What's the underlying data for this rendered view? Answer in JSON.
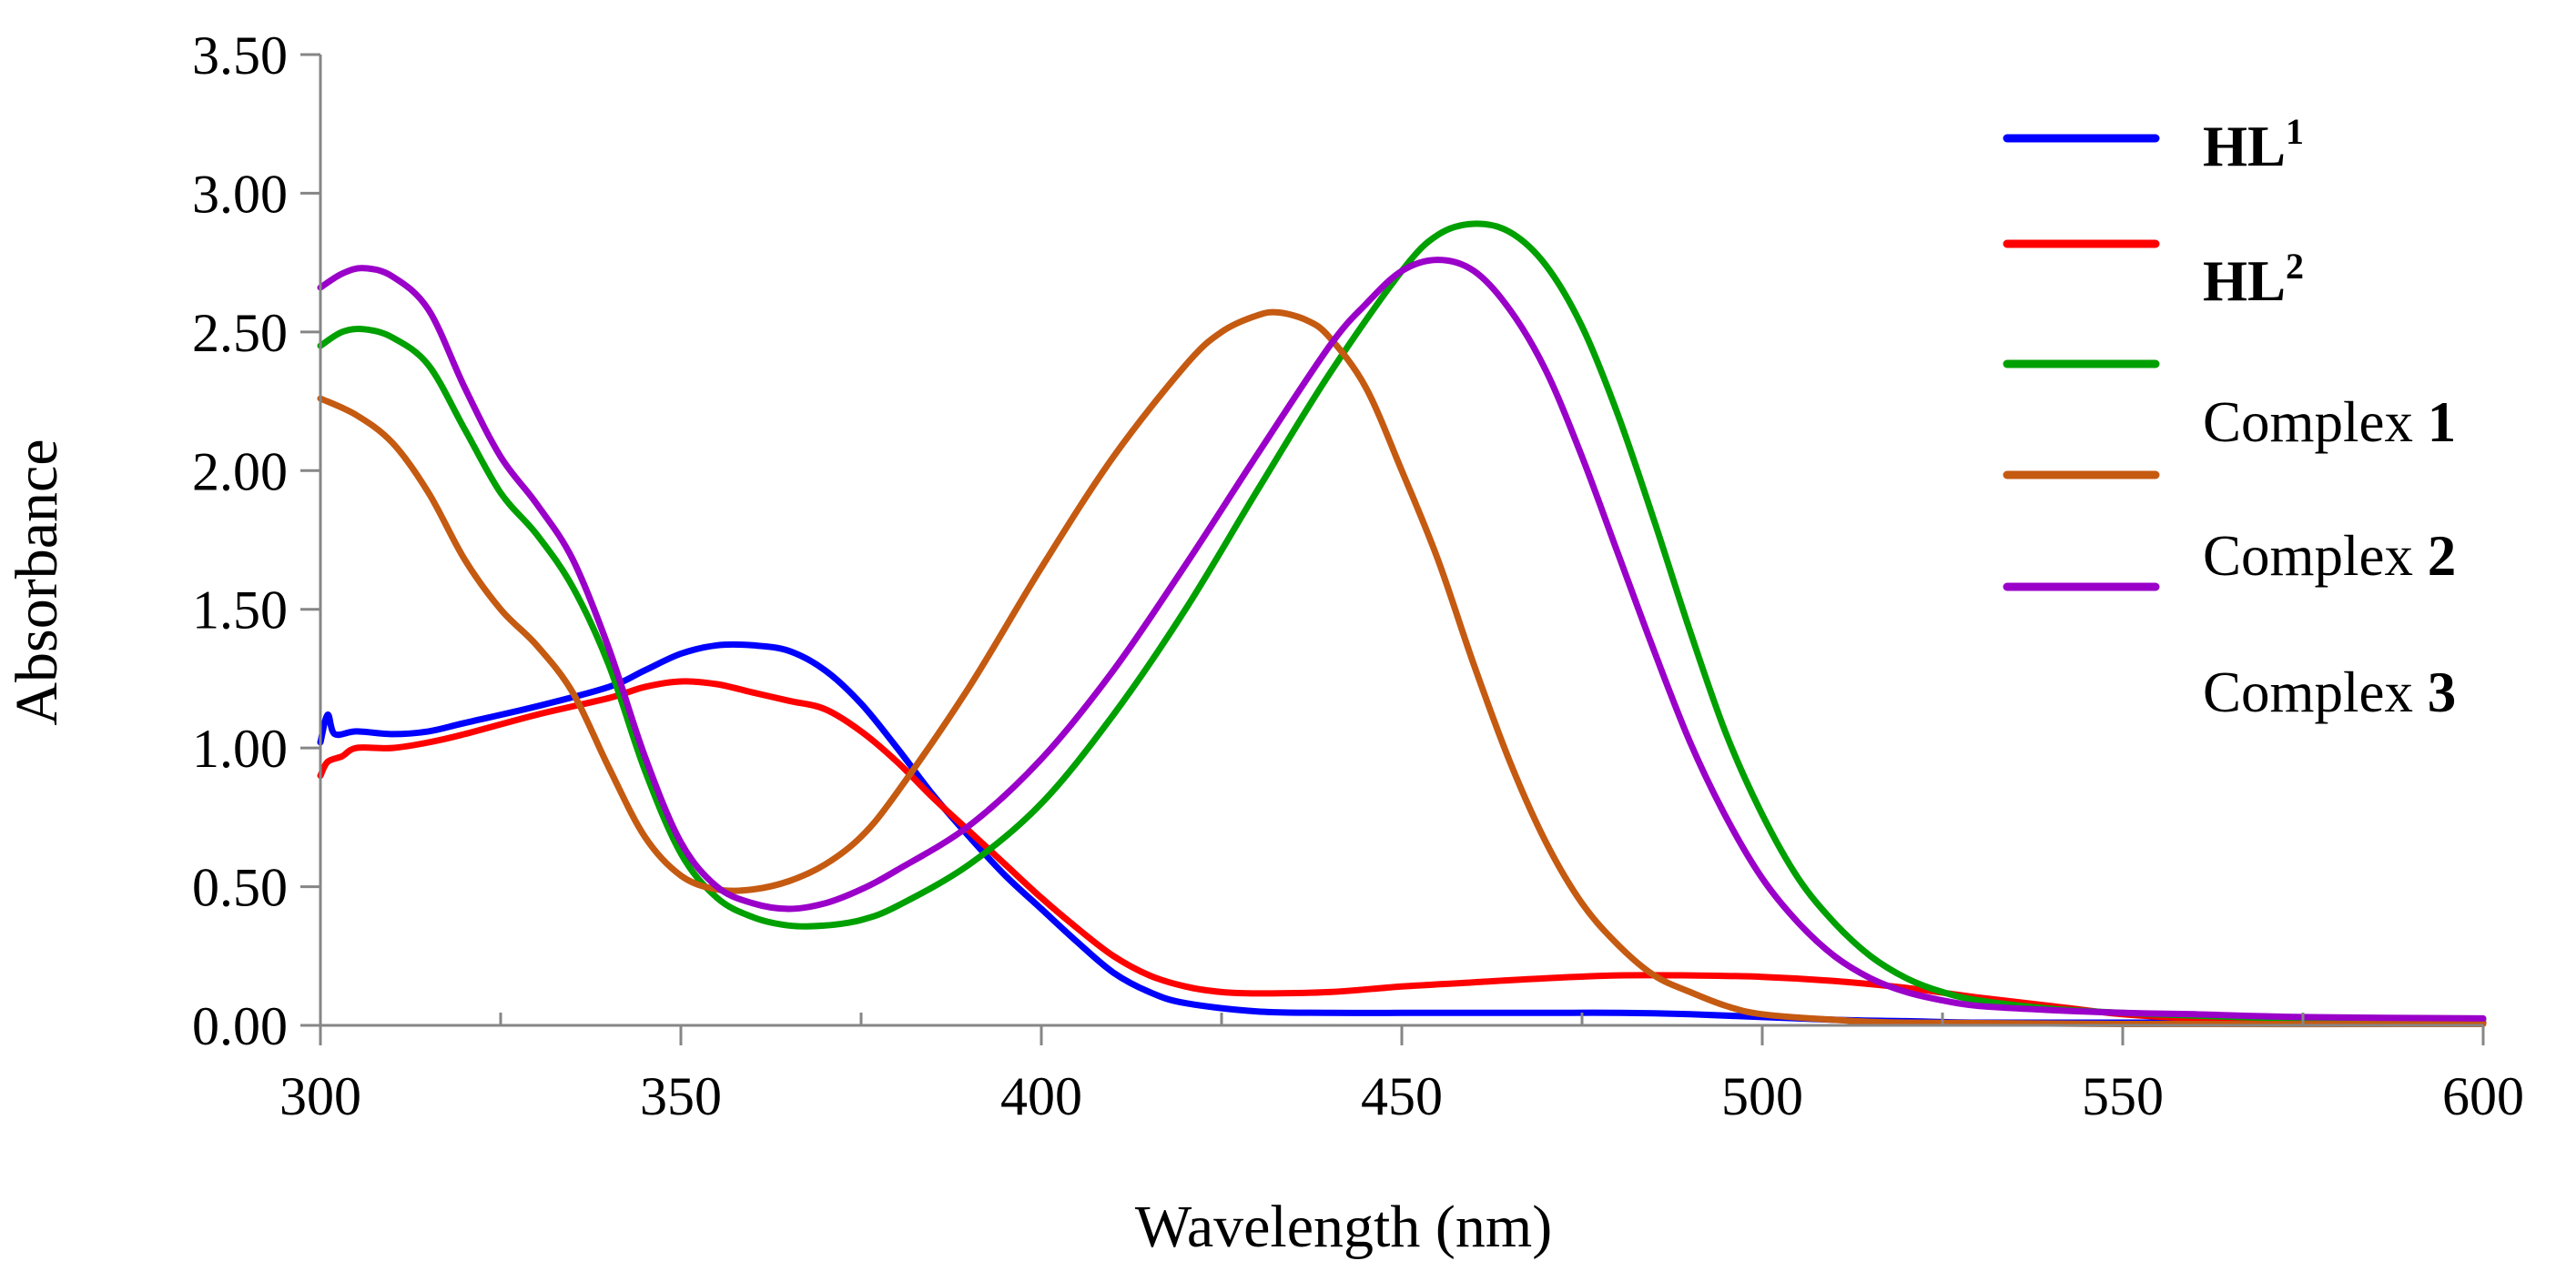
{
  "chart_data": {
    "type": "line",
    "xlabel": "Wavelength (nm)",
    "ylabel": "Absorbance",
    "xlim": [
      300,
      600
    ],
    "ylim": [
      0,
      3.5
    ],
    "x_ticks": [
      "300",
      "350",
      "400",
      "450",
      "500",
      "550",
      "600"
    ],
    "y_ticks": [
      "0.00",
      "0.50",
      "1.00",
      "1.50",
      "2.00",
      "2.50",
      "3.00",
      "3.50"
    ],
    "x_minor_step": 25,
    "legend_position": "top-right",
    "series": [
      {
        "name": "HL1",
        "label_main": "HL",
        "label_sup": "1",
        "color": "#0000FF",
        "points": [
          [
            300,
            1.02
          ],
          [
            301,
            1.12
          ],
          [
            302,
            1.05
          ],
          [
            305,
            1.06
          ],
          [
            310,
            1.05
          ],
          [
            315,
            1.06
          ],
          [
            320,
            1.09
          ],
          [
            330,
            1.15
          ],
          [
            340,
            1.22
          ],
          [
            345,
            1.28
          ],
          [
            350,
            1.34
          ],
          [
            355,
            1.37
          ],
          [
            360,
            1.37
          ],
          [
            365,
            1.35
          ],
          [
            370,
            1.28
          ],
          [
            375,
            1.16
          ],
          [
            380,
            1.0
          ],
          [
            385,
            0.83
          ],
          [
            390,
            0.68
          ],
          [
            395,
            0.54
          ],
          [
            400,
            0.42
          ],
          [
            405,
            0.3
          ],
          [
            410,
            0.19
          ],
          [
            415,
            0.12
          ],
          [
            420,
            0.08
          ],
          [
            430,
            0.05
          ],
          [
            440,
            0.045
          ],
          [
            450,
            0.045
          ],
          [
            460,
            0.045
          ],
          [
            470,
            0.045
          ],
          [
            480,
            0.045
          ],
          [
            490,
            0.04
          ],
          [
            500,
            0.03
          ],
          [
            510,
            0.02
          ],
          [
            520,
            0.015
          ],
          [
            530,
            0.01
          ],
          [
            550,
            0.01
          ],
          [
            575,
            0.01
          ],
          [
            600,
            0.01
          ]
        ]
      },
      {
        "name": "HL2",
        "label_main": "HL",
        "label_sup": "2",
        "color": "#FF0000",
        "points": [
          [
            300,
            0.9
          ],
          [
            301,
            0.95
          ],
          [
            303,
            0.97
          ],
          [
            305,
            1.0
          ],
          [
            310,
            1.0
          ],
          [
            315,
            1.02
          ],
          [
            320,
            1.05
          ],
          [
            330,
            1.12
          ],
          [
            340,
            1.18
          ],
          [
            345,
            1.22
          ],
          [
            350,
            1.24
          ],
          [
            355,
            1.23
          ],
          [
            360,
            1.2
          ],
          [
            365,
            1.17
          ],
          [
            370,
            1.14
          ],
          [
            375,
            1.06
          ],
          [
            380,
            0.95
          ],
          [
            385,
            0.82
          ],
          [
            390,
            0.7
          ],
          [
            395,
            0.58
          ],
          [
            400,
            0.46
          ],
          [
            405,
            0.35
          ],
          [
            410,
            0.25
          ],
          [
            415,
            0.18
          ],
          [
            420,
            0.14
          ],
          [
            425,
            0.12
          ],
          [
            430,
            0.115
          ],
          [
            440,
            0.12
          ],
          [
            450,
            0.14
          ],
          [
            460,
            0.155
          ],
          [
            470,
            0.17
          ],
          [
            480,
            0.18
          ],
          [
            490,
            0.18
          ],
          [
            500,
            0.175
          ],
          [
            510,
            0.16
          ],
          [
            520,
            0.135
          ],
          [
            530,
            0.1
          ],
          [
            540,
            0.07
          ],
          [
            550,
            0.04
          ],
          [
            560,
            0.025
          ],
          [
            575,
            0.015
          ],
          [
            600,
            0.01
          ]
        ]
      },
      {
        "name": "Complex 1",
        "label_main": "Complex ",
        "label_num": "1",
        "color": "#00A000",
        "points": [
          [
            300,
            2.45
          ],
          [
            303,
            2.5
          ],
          [
            306,
            2.51
          ],
          [
            310,
            2.48
          ],
          [
            315,
            2.38
          ],
          [
            320,
            2.15
          ],
          [
            325,
            1.92
          ],
          [
            330,
            1.77
          ],
          [
            335,
            1.58
          ],
          [
            340,
            1.3
          ],
          [
            345,
            0.92
          ],
          [
            350,
            0.62
          ],
          [
            355,
            0.46
          ],
          [
            360,
            0.39
          ],
          [
            365,
            0.36
          ],
          [
            370,
            0.36
          ],
          [
            375,
            0.38
          ],
          [
            380,
            0.43
          ],
          [
            390,
            0.58
          ],
          [
            400,
            0.8
          ],
          [
            410,
            1.12
          ],
          [
            420,
            1.5
          ],
          [
            430,
            1.93
          ],
          [
            440,
            2.35
          ],
          [
            450,
            2.72
          ],
          [
            455,
            2.85
          ],
          [
            460,
            2.89
          ],
          [
            465,
            2.86
          ],
          [
            470,
            2.74
          ],
          [
            475,
            2.52
          ],
          [
            480,
            2.2
          ],
          [
            485,
            1.82
          ],
          [
            490,
            1.42
          ],
          [
            495,
            1.05
          ],
          [
            500,
            0.76
          ],
          [
            505,
            0.53
          ],
          [
            510,
            0.37
          ],
          [
            515,
            0.25
          ],
          [
            520,
            0.17
          ],
          [
            525,
            0.12
          ],
          [
            530,
            0.09
          ],
          [
            540,
            0.06
          ],
          [
            550,
            0.045
          ],
          [
            560,
            0.035
          ],
          [
            575,
            0.025
          ],
          [
            600,
            0.02
          ]
        ]
      },
      {
        "name": "Complex 2",
        "label_main": "Complex ",
        "label_num": "2",
        "color": "#C55A11",
        "points": [
          [
            300,
            2.26
          ],
          [
            305,
            2.2
          ],
          [
            310,
            2.1
          ],
          [
            315,
            1.92
          ],
          [
            320,
            1.68
          ],
          [
            325,
            1.5
          ],
          [
            330,
            1.37
          ],
          [
            335,
            1.2
          ],
          [
            340,
            0.93
          ],
          [
            345,
            0.68
          ],
          [
            350,
            0.54
          ],
          [
            355,
            0.49
          ],
          [
            360,
            0.49
          ],
          [
            365,
            0.52
          ],
          [
            370,
            0.58
          ],
          [
            375,
            0.68
          ],
          [
            380,
            0.84
          ],
          [
            390,
            1.22
          ],
          [
            400,
            1.65
          ],
          [
            410,
            2.05
          ],
          [
            420,
            2.38
          ],
          [
            425,
            2.5
          ],
          [
            430,
            2.56
          ],
          [
            433,
            2.57
          ],
          [
            437,
            2.54
          ],
          [
            440,
            2.48
          ],
          [
            445,
            2.3
          ],
          [
            450,
            2.0
          ],
          [
            455,
            1.68
          ],
          [
            460,
            1.3
          ],
          [
            465,
            0.95
          ],
          [
            470,
            0.66
          ],
          [
            475,
            0.44
          ],
          [
            480,
            0.29
          ],
          [
            485,
            0.18
          ],
          [
            490,
            0.12
          ],
          [
            495,
            0.07
          ],
          [
            500,
            0.04
          ],
          [
            510,
            0.02
          ],
          [
            520,
            0.01
          ],
          [
            550,
            0.005
          ],
          [
            600,
            0.005
          ]
        ]
      },
      {
        "name": "Complex 3",
        "label_main": "Complex ",
        "label_num": "3",
        "color": "#9A00C9",
        "points": [
          [
            300,
            2.66
          ],
          [
            303,
            2.71
          ],
          [
            306,
            2.73
          ],
          [
            310,
            2.7
          ],
          [
            315,
            2.58
          ],
          [
            320,
            2.3
          ],
          [
            325,
            2.05
          ],
          [
            330,
            1.88
          ],
          [
            335,
            1.68
          ],
          [
            340,
            1.36
          ],
          [
            345,
            0.97
          ],
          [
            350,
            0.66
          ],
          [
            355,
            0.5
          ],
          [
            360,
            0.44
          ],
          [
            365,
            0.42
          ],
          [
            370,
            0.44
          ],
          [
            375,
            0.49
          ],
          [
            380,
            0.56
          ],
          [
            390,
            0.72
          ],
          [
            400,
            0.96
          ],
          [
            410,
            1.28
          ],
          [
            420,
            1.66
          ],
          [
            430,
            2.06
          ],
          [
            440,
            2.45
          ],
          [
            445,
            2.6
          ],
          [
            450,
            2.72
          ],
          [
            455,
            2.76
          ],
          [
            460,
            2.72
          ],
          [
            465,
            2.58
          ],
          [
            470,
            2.36
          ],
          [
            475,
            2.05
          ],
          [
            480,
            1.7
          ],
          [
            485,
            1.35
          ],
          [
            490,
            1.02
          ],
          [
            495,
            0.75
          ],
          [
            500,
            0.53
          ],
          [
            505,
            0.37
          ],
          [
            510,
            0.25
          ],
          [
            515,
            0.17
          ],
          [
            520,
            0.12
          ],
          [
            525,
            0.09
          ],
          [
            530,
            0.07
          ],
          [
            540,
            0.055
          ],
          [
            550,
            0.045
          ],
          [
            560,
            0.04
          ],
          [
            575,
            0.03
          ],
          [
            600,
            0.025
          ]
        ]
      }
    ]
  }
}
